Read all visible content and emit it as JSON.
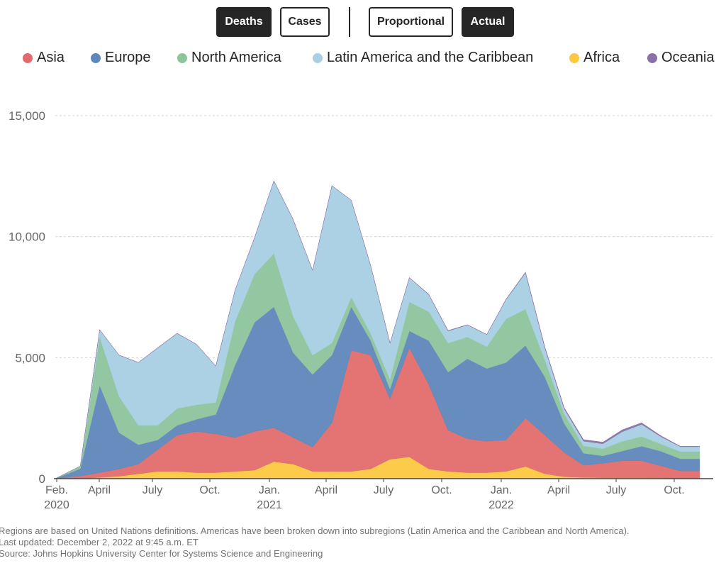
{
  "controls": {
    "metric_buttons": [
      {
        "label": "Deaths",
        "active": true
      },
      {
        "label": "Cases",
        "active": false
      }
    ],
    "scale_buttons": [
      {
        "label": "Proportional",
        "active": false
      },
      {
        "label": "Actual",
        "active": true
      }
    ]
  },
  "chart_data": {
    "type": "area",
    "stacked": true,
    "title": "",
    "xlabel": "",
    "ylabel": "",
    "ylim": [
      0,
      15000
    ],
    "grid": true,
    "legend_position": "top",
    "y_ticks": [
      0,
      5000,
      10000,
      15000
    ],
    "y_tick_labels": [
      "0",
      "5,000",
      "10,000",
      "15,000"
    ],
    "x_tick_labels": [
      {
        "label": "Feb.",
        "sub": "2020"
      },
      {
        "label": "April",
        "sub": ""
      },
      {
        "label": "July",
        "sub": ""
      },
      {
        "label": "Oct.",
        "sub": ""
      },
      {
        "label": "Jan.",
        "sub": "2021"
      },
      {
        "label": "April",
        "sub": ""
      },
      {
        "label": "July",
        "sub": ""
      },
      {
        "label": "Oct.",
        "sub": ""
      },
      {
        "label": "Jan.",
        "sub": "2022"
      },
      {
        "label": "April",
        "sub": ""
      },
      {
        "label": "July",
        "sub": ""
      },
      {
        "label": "Oct.",
        "sub": ""
      }
    ],
    "x": [
      "2020-02",
      "2020-03",
      "2020-04",
      "2020-05",
      "2020-06",
      "2020-07",
      "2020-08",
      "2020-09",
      "2020-10",
      "2020-11",
      "2020-12",
      "2021-01",
      "2021-02",
      "2021-03",
      "2021-04",
      "2021-05",
      "2021-06",
      "2021-07",
      "2021-08",
      "2021-09",
      "2021-10",
      "2021-11",
      "2021-12",
      "2022-01",
      "2022-02",
      "2022-03",
      "2022-04",
      "2022-05",
      "2022-06",
      "2022-07",
      "2022-08",
      "2022-09",
      "2022-10",
      "2022-11"
    ],
    "series": [
      {
        "name": "Africa",
        "color": "#fcc83f",
        "values": [
          0,
          10,
          50,
          100,
          200,
          300,
          300,
          250,
          250,
          300,
          350,
          700,
          600,
          300,
          300,
          300,
          400,
          800,
          900,
          400,
          300,
          250,
          250,
          300,
          500,
          200,
          80,
          50,
          40,
          40,
          40,
          30,
          20,
          20
        ]
      },
      {
        "name": "Asia",
        "color": "#e36b6b",
        "values": [
          0,
          100,
          200,
          300,
          400,
          900,
          1500,
          1700,
          1600,
          1400,
          1600,
          1400,
          1100,
          1000,
          2000,
          5000,
          4700,
          2500,
          4500,
          3500,
          1700,
          1400,
          1300,
          1300,
          2000,
          1600,
          1000,
          500,
          600,
          700,
          700,
          500,
          300,
          300
        ]
      },
      {
        "name": "Europe",
        "color": "#5f87bb",
        "values": [
          0,
          300,
          3600,
          1500,
          800,
          400,
          400,
          500,
          800,
          3000,
          4500,
          5000,
          3500,
          3000,
          2800,
          1800,
          600,
          400,
          700,
          1800,
          2400,
          3300,
          3000,
          3200,
          3000,
          2400,
          1200,
          500,
          300,
          400,
          600,
          600,
          500,
          500
        ]
      },
      {
        "name": "North America",
        "color": "#8cc49c",
        "values": [
          0,
          100,
          2000,
          1500,
          800,
          600,
          700,
          600,
          500,
          1800,
          2000,
          2200,
          1500,
          800,
          500,
          400,
          300,
          400,
          1200,
          1200,
          1200,
          900,
          900,
          1800,
          1500,
          700,
          400,
          300,
          300,
          400,
          400,
          300,
          300,
          300
        ]
      },
      {
        "name": "Latin America and the Caribbean",
        "color": "#a9cfe3",
        "values": [
          0,
          10,
          300,
          1700,
          2600,
          3200,
          3100,
          2500,
          1500,
          1300,
          1500,
          3000,
          4000,
          3500,
          6500,
          4000,
          2800,
          1500,
          1000,
          700,
          500,
          500,
          500,
          800,
          1500,
          500,
          200,
          200,
          200,
          400,
          500,
          300,
          200,
          200
        ]
      },
      {
        "name": "Oceania",
        "color": "#8a72a6",
        "values": [
          0,
          0,
          5,
          5,
          5,
          10,
          10,
          5,
          5,
          5,
          5,
          5,
          5,
          5,
          5,
          5,
          5,
          5,
          10,
          20,
          20,
          10,
          10,
          20,
          30,
          40,
          50,
          60,
          70,
          80,
          70,
          40,
          20,
          20
        ]
      }
    ]
  },
  "legend": {
    "items": [
      {
        "label": "Asia",
        "color": "#e36b6b"
      },
      {
        "label": "Europe",
        "color": "#5f87bb"
      },
      {
        "label": "North America",
        "color": "#8cc49c"
      },
      {
        "label": "Latin America and the Caribbean",
        "color": "#a9cfe3"
      },
      {
        "label": "Africa",
        "color": "#fcc83f"
      },
      {
        "label": "Oceania",
        "color": "#8a72a6"
      }
    ]
  },
  "notes": {
    "definition": "Regions are based on United Nations definitions. Americas have been broken down into subregions (Latin America and the Caribbean and North America).",
    "updated": "Last updated: December 2, 2022 at 9:45 a.m. ET",
    "source": "Source: Johns Hopkins University Center for Systems Science and Engineering"
  }
}
